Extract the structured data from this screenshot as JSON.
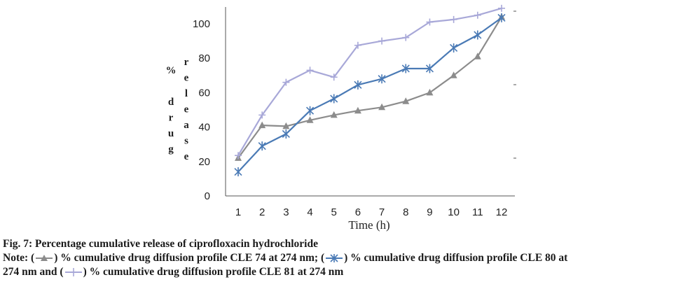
{
  "chart_data": {
    "type": "line",
    "title": "",
    "xlabel": "Time (h)",
    "ylabel_columns": [
      "% drug",
      "release"
    ],
    "ylim": [
      0,
      110
    ],
    "yticks": [
      "0",
      "20",
      "40",
      "60",
      "80",
      "100"
    ],
    "ytick_values": [
      0,
      20,
      40,
      60,
      80,
      100
    ],
    "categories": [
      "1",
      "2",
      "3",
      "4",
      "5",
      "6",
      "7",
      "8",
      "9",
      "10",
      "11",
      "12"
    ],
    "grid": false,
    "series": [
      {
        "name": "CLE 74",
        "marker": "triangle",
        "color": "#8c8c8c",
        "values": [
          22,
          41,
          40.5,
          44,
          47,
          49.5,
          51.5,
          55,
          60,
          70,
          81,
          104
        ]
      },
      {
        "name": "CLE 80",
        "marker": "star",
        "color": "#4a7ab5",
        "values": [
          14,
          29,
          36,
          49.5,
          56.5,
          64.5,
          68,
          74,
          74,
          86,
          93.5,
          103.5
        ]
      },
      {
        "name": "CLE 81",
        "marker": "plus",
        "color": "#a8a8d8",
        "values": [
          23.5,
          47,
          66,
          73,
          69,
          87.5,
          90,
          92,
          101,
          102.5,
          105,
          109
        ]
      }
    ]
  },
  "caption": {
    "figure_title": "Fig. 7: Percentage cumulative release of ciprofloxacin hydrochloride",
    "note_prefix": "Note: (",
    "legend_text_1": ") % cumulative drug diffusion profile CLE 74 at 274 nm; (",
    "legend_text_2": ") % cumulative drug diffusion profile CLE 80 at",
    "legend_text_3": "274 nm and (",
    "legend_text_4": ") % cumulative drug diffusion profile CLE 81 at 274 nm"
  }
}
